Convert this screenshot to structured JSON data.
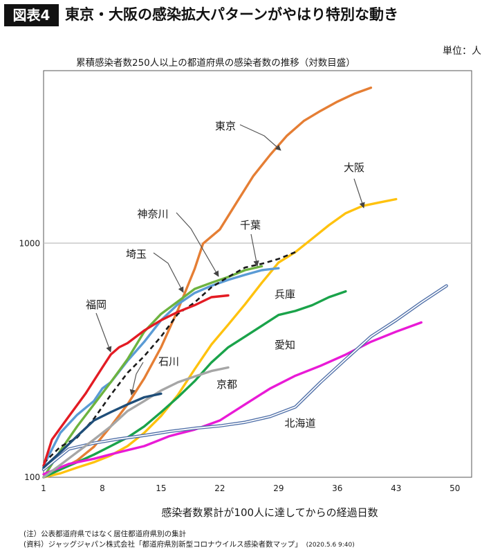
{
  "header": {
    "badge": "図表4",
    "headline": "東京・大阪の感染拡大パターンがやはり特別な動き"
  },
  "unit_label": "単位：人",
  "notes": {
    "note1": "(注）公表都道府県ではなく居住都道府県別の集計",
    "note2": "(資料）ジャッグジャパン株式会社「都道府県別新型コロナウイルス感染者数マップ」",
    "note2_date": "(2020.5.6 9:40)"
  },
  "chart_data": {
    "type": "line",
    "title": "累積感染者数250人以上の都道府県の感染者数の推移（対数目盛）",
    "xlabel": "感染者数累計が100人に達してからの経過日数",
    "ylabel": "",
    "x_ticks": [
      1,
      8,
      15,
      22,
      29,
      36,
      43,
      50
    ],
    "x_range": [
      1,
      52
    ],
    "y_scale": "log",
    "y_ticks": [
      100,
      1000
    ],
    "y_range": [
      100,
      5500
    ],
    "grid": "horizontal line at 1000",
    "colors": {
      "tokyo": "#e57e34",
      "osaka": "#ffc20e",
      "kanagawa": "#5a9bd5",
      "chiba": "#6db33f",
      "saitama": "#1a1a1a",
      "fukuoka": "#e31b23",
      "hyogo": "#1aa34a",
      "aichi": "#e91ad6",
      "hokkaido": "#4f6fa8",
      "kyoto": "#a6a6a6",
      "ishikawa": "#1f4e79"
    },
    "series": [
      {
        "name": "東京",
        "key": "tokyo",
        "style": "solid",
        "x": [
          1,
          3,
          5,
          7,
          9,
          11,
          13,
          15,
          17,
          19,
          20,
          22,
          24,
          26,
          28,
          30,
          32,
          34,
          36,
          38,
          40
        ],
        "y": [
          100,
          108,
          118,
          135,
          165,
          205,
          265,
          360,
          520,
          780,
          1000,
          1150,
          1500,
          1950,
          2400,
          2900,
          3350,
          3700,
          4050,
          4380,
          4650
        ]
      },
      {
        "name": "大阪",
        "key": "osaka",
        "style": "solid",
        "x": [
          1,
          3,
          5,
          7,
          9,
          11,
          13,
          15,
          17,
          19,
          21,
          23,
          25,
          27,
          29,
          31,
          33,
          35,
          37,
          39,
          41,
          43
        ],
        "y": [
          100,
          104,
          110,
          116,
          124,
          136,
          155,
          183,
          225,
          290,
          370,
          450,
          550,
          680,
          830,
          920,
          1050,
          1200,
          1350,
          1450,
          1500,
          1550
        ]
      },
      {
        "name": "神奈川",
        "key": "kanagawa",
        "style": "solid",
        "x": [
          1,
          3,
          5,
          7,
          8,
          9,
          11,
          13,
          15,
          17,
          19,
          21,
          23,
          25,
          27,
          29
        ],
        "y": [
          112,
          155,
          185,
          212,
          240,
          255,
          315,
          380,
          470,
          550,
          615,
          660,
          700,
          735,
          770,
          785
        ]
      },
      {
        "name": "千葉",
        "key": "chiba",
        "style": "solid",
        "x": [
          1,
          3,
          5,
          7,
          9,
          11,
          13,
          15,
          17,
          19,
          21,
          23,
          25,
          27
        ],
        "y": [
          100,
          130,
          165,
          205,
          255,
          320,
          420,
          500,
          565,
          640,
          680,
          720,
          770,
          800
        ]
      },
      {
        "name": "埼玉",
        "key": "saitama",
        "style": "dashed",
        "x": [
          1,
          3,
          5,
          7,
          9,
          11,
          13,
          15,
          17,
          19,
          21,
          23,
          25,
          27,
          29,
          31
        ],
        "y": [
          115,
          135,
          148,
          178,
          225,
          280,
          330,
          400,
          500,
          560,
          650,
          720,
          790,
          820,
          860,
          920
        ]
      },
      {
        "name": "福岡",
        "key": "fukuoka",
        "style": "solid",
        "x": [
          1,
          2,
          4,
          6,
          8,
          9,
          10,
          11,
          13,
          15,
          17,
          19,
          21,
          23
        ],
        "y": [
          112,
          145,
          182,
          228,
          295,
          335,
          360,
          375,
          425,
          470,
          510,
          545,
          590,
          600
        ]
      },
      {
        "name": "兵庫",
        "key": "hyogo",
        "style": "solid",
        "x": [
          1,
          3,
          5,
          7,
          9,
          11,
          13,
          15,
          17,
          19,
          21,
          23,
          25,
          27,
          29,
          31,
          33,
          35,
          37
        ],
        "y": [
          100,
          108,
          116,
          125,
          136,
          148,
          165,
          190,
          220,
          258,
          310,
          360,
          400,
          445,
          495,
          515,
          545,
          590,
          625
        ]
      },
      {
        "name": "愛知",
        "key": "aichi",
        "style": "solid",
        "x": [
          1,
          4,
          7,
          10,
          13,
          16,
          19,
          22,
          25,
          28,
          31,
          34,
          37,
          40,
          43,
          46
        ],
        "y": [
          103,
          114,
          120,
          128,
          136,
          150,
          160,
          175,
          205,
          240,
          272,
          300,
          335,
          380,
          420,
          460
        ]
      },
      {
        "name": "北海道",
        "key": "hokkaido",
        "style": "double",
        "x": [
          1,
          4,
          7,
          10,
          13,
          16,
          19,
          22,
          25,
          28,
          31,
          34,
          37,
          40,
          43,
          46,
          49
        ],
        "y": [
          108,
          132,
          140,
          146,
          151,
          157,
          162,
          166,
          172,
          182,
          200,
          255,
          320,
          400,
          470,
          560,
          660
        ]
      },
      {
        "name": "京都",
        "key": "kyoto",
        "style": "solid",
        "x": [
          1,
          3,
          5,
          7,
          9,
          11,
          13,
          15,
          17,
          19,
          21,
          23
        ],
        "y": [
          100,
          113,
          128,
          145,
          165,
          192,
          212,
          235,
          255,
          270,
          285,
          295
        ]
      },
      {
        "name": "石川",
        "key": "ishikawa",
        "style": "solid",
        "x": [
          1,
          3,
          5,
          7,
          9,
          11,
          13,
          15
        ],
        "y": [
          110,
          128,
          150,
          175,
          190,
          205,
          220,
          228
        ]
      }
    ]
  }
}
